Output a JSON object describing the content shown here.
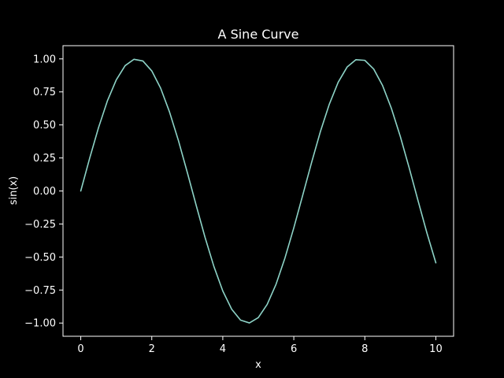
{
  "colors": {
    "background": "#000000",
    "foreground": "#ffffff",
    "series": "#8dd3c7"
  },
  "chart_data": {
    "type": "line",
    "title": "A Sine Curve",
    "xlabel": "x",
    "ylabel": "sin(x)",
    "xlim": [
      -0.5,
      10.5
    ],
    "ylim": [
      -1.1,
      1.1
    ],
    "grid": false,
    "xticks": [
      0,
      2,
      4,
      6,
      8,
      10
    ],
    "xtick_labels": [
      "0",
      "2",
      "4",
      "6",
      "8",
      "10"
    ],
    "yticks": [
      -1.0,
      -0.75,
      -0.5,
      -0.25,
      0.0,
      0.25,
      0.5,
      0.75,
      1.0
    ],
    "ytick_labels": [
      "−1.00",
      "−0.75",
      "−0.50",
      "−0.25",
      "0.00",
      "0.25",
      "0.50",
      "0.75",
      "1.00"
    ],
    "series": [
      {
        "x": [
          0,
          0.25,
          0.5,
          0.75,
          1,
          1.25,
          1.5,
          1.75,
          2,
          2.25,
          2.5,
          2.75,
          3,
          3.25,
          3.5,
          3.75,
          4,
          4.25,
          4.5,
          4.75,
          5,
          5.25,
          5.5,
          5.75,
          6,
          6.25,
          6.5,
          6.75,
          7,
          7.25,
          7.5,
          7.75,
          8,
          8.25,
          8.5,
          8.75,
          9,
          9.25,
          9.5,
          9.75,
          10
        ],
        "y": [
          0,
          0.247,
          0.479,
          0.682,
          0.841,
          0.949,
          0.997,
          0.984,
          0.909,
          0.778,
          0.598,
          0.382,
          0.141,
          -0.108,
          -0.351,
          -0.572,
          -0.757,
          -0.895,
          -0.978,
          -0.999,
          -0.959,
          -0.859,
          -0.706,
          -0.508,
          -0.279,
          -0.033,
          0.215,
          0.451,
          0.657,
          0.823,
          0.938,
          0.994,
          0.989,
          0.923,
          0.798,
          0.624,
          0.412,
          0.174,
          -0.075,
          -0.319,
          -0.544
        ]
      }
    ]
  }
}
